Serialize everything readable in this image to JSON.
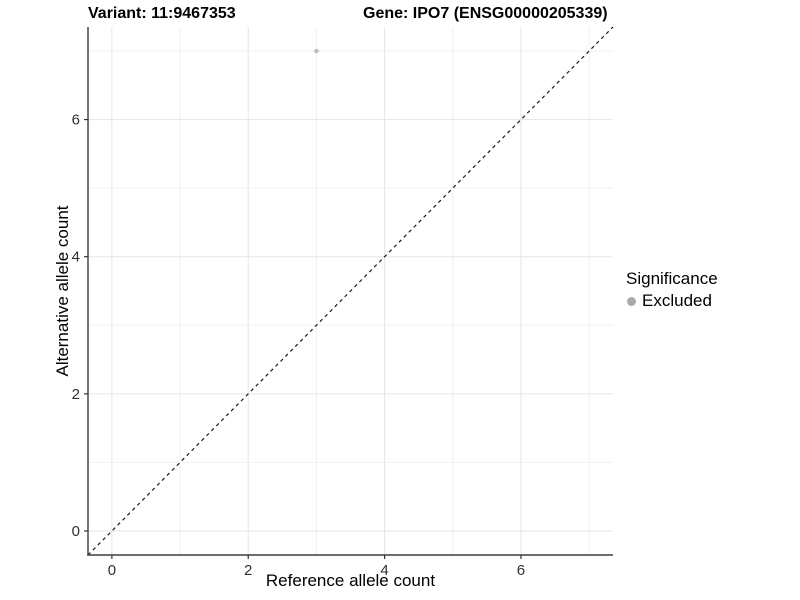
{
  "chart_data": {
    "type": "scatter",
    "title_variant": "Variant: 11:9467353",
    "title_gene": "Gene: IPO7 (ENSG00000205339)",
    "xlabel": "Reference allele count",
    "ylabel": "Alternative allele count",
    "xlim": [
      -0.35,
      7.35
    ],
    "ylim": [
      -0.35,
      7.35
    ],
    "x_ticks": [
      0,
      2,
      4,
      6
    ],
    "y_ticks": [
      0,
      2,
      4,
      6
    ],
    "x_minor_gridlines": [
      1,
      3,
      5,
      7
    ],
    "y_minor_gridlines": [
      1,
      3,
      5,
      7
    ],
    "grid": true,
    "points": [
      {
        "x": 3,
        "y": 7,
        "significance": "Excluded"
      }
    ],
    "identity_line": {
      "type": "y=x",
      "style": "dashed",
      "color": "#1a1a1a"
    },
    "legend": {
      "position": "right",
      "title": "Significance",
      "entries": [
        {
          "label": "Excluded",
          "color": "#a9a9a9"
        }
      ]
    },
    "colors": {
      "background": "#ffffff",
      "point": "#c0c0c0",
      "grid_major": "#e5e5e5",
      "grid_minor": "#f0f0f0",
      "axis_line": "#3d3d3d",
      "tick": "#333333",
      "tick_label": "#303030",
      "title_text": "#000000"
    }
  }
}
